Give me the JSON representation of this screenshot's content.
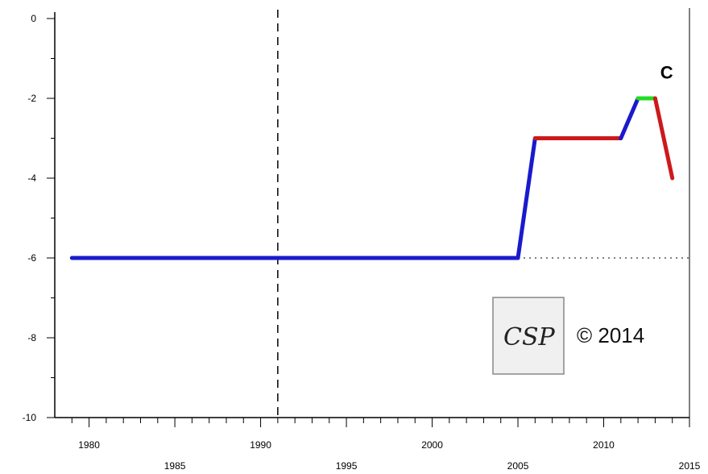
{
  "chart_data": {
    "type": "line",
    "title": "",
    "xlabel": "",
    "ylabel": "",
    "xlim": [
      1978,
      2015
    ],
    "ylim": [
      -10,
      0
    ],
    "x_ticks_major": [
      1980,
      1985,
      1990,
      1995,
      2000,
      2005,
      2010,
      2015
    ],
    "y_ticks_major": [
      0,
      -2,
      -4,
      -6,
      -8,
      -10
    ],
    "grid": false,
    "legend": "none",
    "vertical_reference_x": 1991,
    "horizontal_reference_y": -6,
    "segments": [
      {
        "color": "#1a1acc",
        "points": [
          [
            1979,
            -6
          ],
          [
            2005,
            -6
          ],
          [
            2006,
            -3
          ]
        ]
      },
      {
        "color": "#cc1a1a",
        "points": [
          [
            2006,
            -3
          ],
          [
            2011,
            -3
          ]
        ]
      },
      {
        "color": "#1a1acc",
        "points": [
          [
            2011,
            -3
          ],
          [
            2012,
            -2
          ]
        ]
      },
      {
        "color": "#22dd22",
        "points": [
          [
            2012,
            -2
          ],
          [
            2013,
            -2
          ]
        ]
      },
      {
        "color": "#cc1a1a",
        "points": [
          [
            2013,
            -2
          ],
          [
            2014,
            -4
          ]
        ]
      }
    ],
    "annotations": [
      {
        "text": "C",
        "x": 2013.3,
        "y": -1.5
      }
    ]
  },
  "logo": {
    "text": "CSP"
  },
  "copyright": "© 2014"
}
